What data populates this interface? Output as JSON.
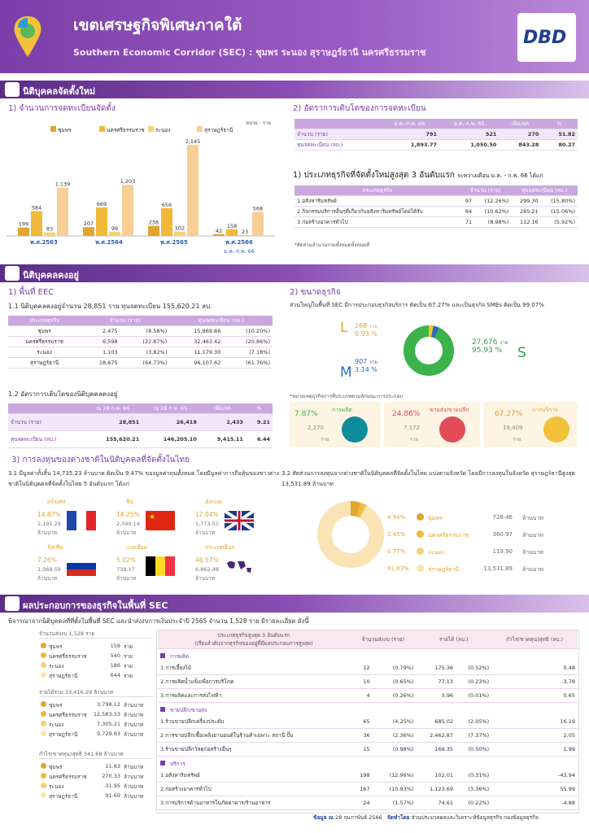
{
  "header": {
    "title": "เขตเศรษฐกิจพิเศษภาคใต้",
    "subtitle": "Southern Economic Corridor (SEC) : ชุมพร ระนอง สุราษฎร์ธานี นครศรีธรรมราช",
    "logo": "DBD"
  },
  "sec1": {
    "bar": "นิติบุคคลจัดตั้งใหม่",
    "chart_title": "1) จำนวนการจดทะเบียนจัดตั้ง",
    "unit": "หน่วย : ราย",
    "growth_title": "2) อัตราการเติบโตของการจดทะเบียน",
    "growth_headers": [
      "",
      "ม.ค.-ก.พ. 66",
      "ม.ค.-ก.พ. 65",
      "เพิ่ม/ลด",
      "%"
    ],
    "growth_rows": [
      [
        "จำนวน (ราย)",
        "791",
        "521",
        "270",
        "51.82"
      ],
      [
        "ทุนจดทะเบียน (ลบ.)",
        "1,893.77",
        "1,050.50",
        "843.28",
        "80.27"
      ]
    ],
    "top3_title": "1) ประเภทธุรกิจที่จัดตั้งใหม่สูงสุด 3 อันดับแรก",
    "top3_sub": "ระหว่างเดือน ม.ค. - ก.พ. 66 ได้แก่",
    "top3_headers": [
      "ประเภทธุรกิจ",
      "จำนวน (ราย)",
      "ทุนจดทะเบียน (ลบ.)"
    ],
    "top3_rows": [
      [
        "1.อสังหาริมทรัพย์",
        "97",
        "(12.26%)",
        "299.30",
        "(15.80%)"
      ],
      [
        "2.กิจกรรมบริการอื่นๆที่เกี่ยวกับอสังหาริมทรัพย์โดยได้รับ",
        "84",
        "(10.62%)",
        "285.21",
        "(15.06%)"
      ],
      [
        "3.ก่อสร้างอาคารทั่วไป",
        "71",
        "(8.98%)",
        "112.16",
        "(5.92%)"
      ]
    ],
    "top3_note": "*สัดส่วนจำนวนรวมทั้งหมดทั้งหมดที่"
  },
  "chart_data": {
    "type": "bar",
    "categories": [
      "พ.ศ.2563",
      "พ.ศ.2564",
      "พ.ศ.2565",
      "พ.ศ.2566"
    ],
    "cat_note": "ม.ค.-ก.พ. 66",
    "series": [
      {
        "name": "ชุมพร",
        "color": "#e0a52e",
        "values": [
          199,
          207,
          238,
          42
        ]
      },
      {
        "name": "นครศรีธรรมราช",
        "color": "#f0b93a",
        "values": [
          584,
          669,
          656,
          158
        ]
      },
      {
        "name": "ระนอง",
        "color": "#f5d27a",
        "values": [
          83,
          99,
          102,
          23
        ]
      },
      {
        "name": "สุราษฎร์ธานี",
        "color": "#f8cf95",
        "values": [
          1139,
          1203,
          2145,
          568
        ]
      }
    ],
    "value_labels": [
      [
        "199",
        "584",
        "83",
        "1,139"
      ],
      [
        "207",
        "669",
        "99",
        "1,203"
      ],
      [
        "238",
        "656",
        "102",
        "2,145"
      ],
      [
        "42",
        "158",
        "23",
        "568"
      ]
    ],
    "ylim": [
      0,
      2300
    ]
  },
  "sec2": {
    "bar": "นิติบุคคลคงอยู่",
    "eec_title": "1) พื้นที่ EEC",
    "eec_line": "1.1 นิติบุคคลคงอยู่จำนวน  28,851  ราย ทุนจดทะเบียน 155,620.21 ลบ.",
    "eec_headers": [
      "ประเภทธุรกิจ",
      "จำนวน (ราย)",
      "ทุนจดทะเบียน (ลบ.)"
    ],
    "eec_rows": [
      [
        "ชุมพร",
        "2,475",
        "(8.58%)",
        "15,869.86",
        "(10.20%)"
      ],
      [
        "นครศรีธรรมราช",
        "6,598",
        "(22.87%)",
        "32,463.42",
        "(20.86%)"
      ],
      [
        "ระนอง",
        "1,103",
        "(3.82%)",
        "11,179.30",
        "(7.18%)"
      ],
      [
        "สุราษฎร์ธานี",
        "18,675",
        "(64.73%)",
        "96,107.62",
        "(61.76%)"
      ]
    ],
    "rate_title": "1.2 อัตราการเติบโตของนิติบุคคลคงอยู่",
    "rate_headers": [
      "",
      "ณ 28 ก.พ. 66",
      "ณ 28 ก.พ. 65",
      "เพิ่ม/ลด",
      "%"
    ],
    "rate_rows": [
      [
        "จำนวน (ราย)",
        "28,851",
        "26,418",
        "2,433",
        "9.21"
      ],
      [
        "ทุนจดทะเบียน (ลบ.)",
        "155,620.21",
        "146,205.10",
        "9,415.11",
        "6.44"
      ]
    ],
    "size_title": "2) ขนาดธุรกิจ",
    "size_line": "ส่วนใหญ่ในพื้นที่ SEC มีการประกอบธุรกิจบริการ คิดเป็น  67.27% และเป็นธุรกิจ SMEs คิดเป็น 99.07%",
    "L": {
      "letter": "L",
      "num": "268",
      "unit": "ราย",
      "pct": "0.93 %"
    },
    "M": {
      "letter": "M",
      "num": "907",
      "unit": "ราย",
      "pct": "3.14 %"
    },
    "S": {
      "letter": "S",
      "num": "27,676",
      "unit": "ราย",
      "pct": "95.93 %"
    },
    "size_note": "*หมายเหตุธุรกิจการที่ประเภทตามลักษณะการประกอบ",
    "cards": [
      {
        "pct": "7.87%",
        "label": "การผลิต",
        "num": "2,270",
        "unit": "ราย"
      },
      {
        "pct": "24.86%",
        "label": "ขายส่ง/ขายปลีก",
        "num": "7,172",
        "unit": "ราย"
      },
      {
        "pct": "67.27%",
        "label": "การบริการ",
        "num": "19,409",
        "unit": "ราย"
      }
    ],
    "inv_title": "3) การลงทุนของต่างชาติในนิติบุคคลที่จัดตั้งในไทย",
    "inv_text": "3.1 มีมูลค่าทั้งสิ้น 14,735.23 ล้านบาท คิดเป็น 9.47%  ของมูลค่าทุนทั้งหมด โดยมีมูลค่าการถือหุ้นของชาวต่างชาติในนิติบุคคลที่จัดตั้งในไทย 5 อันดับแรก ได้แก่",
    "countries": [
      {
        "name": "ฝรั่งเศส",
        "pct": "14.87%",
        "val": "2,191.29",
        "unit": "ล้านบาท"
      },
      {
        "name": "จีน",
        "pct": "14.25%",
        "val": "2,099.14",
        "unit": "ล้านบาท"
      },
      {
        "name": "อังกฤษ",
        "pct": "12.04%",
        "val": "1,773.55",
        "unit": "ล้านบาท"
      },
      {
        "name": "รัสเซีย",
        "pct": "7.26%",
        "val": "1,069.59",
        "unit": "ล้านบาท"
      },
      {
        "name": "เบลเยี่ยม",
        "pct": "5.02%",
        "val": "739.17",
        "unit": "ล้านบาท"
      },
      {
        "name": "ประเทศอื่นๆ",
        "pct": "46.57%",
        "val": "6,862.48",
        "unit": "ล้านบาท"
      }
    ],
    "prov_text": "3.2 สัดส่วนการลงทุนจากต่างชาติในนิติบุคคลที่จัดตั้งในไทย แบ่งตามจังหวัด โดยมีการลงทุนในจังหวัด สุราษฎร์ธานีสูงสุด 13,531.89 ล้านบาท",
    "prov_rows": [
      {
        "pct": "4.94%",
        "name": "ชุมพร",
        "val": "728.46",
        "unit": "ล้านบาท",
        "color": "#e0a52e"
      },
      {
        "pct": "2.45%",
        "name": "นครศรีธรรมราช",
        "val": "360.97",
        "unit": "ล้านบาท",
        "color": "#f0b93a"
      },
      {
        "pct": "0.77%",
        "name": "ระนอง",
        "val": "113.90",
        "unit": "ล้านบาท",
        "color": "#f5d27a"
      },
      {
        "pct": "91.83%",
        "name": "สุราษฎร์ธานี",
        "val": "13,531.89",
        "unit": "ล้านบาท",
        "color": "#fae3b4"
      }
    ]
  },
  "sec3": {
    "bar": "ผลประกอบการของธุรกิจในพื้นที่ SEC",
    "intro": "พิจารณาจากนิติบุคคลที่ที่ตั้งในพื้นที่ SEC และนำส่งงบการเงินประจำปี 2565 จำนวน 1,528 ราย มีรายละเอียด ดังนี้",
    "groups": [
      {
        "title": "จำนวนส่งงบ 1,528 ราย",
        "rows": [
          [
            "ชุมพร",
            "158",
            "ราย"
          ],
          [
            "นครศรีธรรมราช",
            "540",
            "ราย"
          ],
          [
            "ระนอง",
            "186",
            "ราย"
          ],
          [
            "สุราษฎร์ธานี",
            "644",
            "ราย"
          ]
        ]
      },
      {
        "title": "รายได้รวม 33,416.29 ล้านบาท",
        "rows": [
          [
            "ชุมพร",
            "3,798.12",
            "ล้านบาท"
          ],
          [
            "นครศรีธรรมราช",
            "12,583.33",
            "ล้านบาท"
          ],
          [
            "ระนอง",
            "7,305.21",
            "ล้านบาท"
          ],
          [
            "สุราษฎร์ธานี",
            "9,729.63",
            "ล้านบาท"
          ]
        ]
      },
      {
        "title": "กำไร(ขาดทุน)สุทธิ 341.69 ล้านบาท",
        "rows": [
          [
            "ชุมพร",
            "11.63",
            "ล้านบาท"
          ],
          [
            "นครศรีธรรมราช",
            "270.33",
            "ล้านบาท"
          ],
          [
            "ระนอง",
            "-31.95",
            "ล้านบาท"
          ],
          [
            "สุราษฎร์ธานี",
            "91.69",
            "ล้านบาท"
          ]
        ]
      }
    ],
    "t_headers": [
      "ประเภทธุรกิจสูงสุด 3 อันดับแรก\n(เรียงลำดับจากธุรกิจของอยู่ที่มีผลประกอบการสูงสุด)",
      "จำนวนส่งงบ (ราย)",
      "รายได้ (ลบ.)",
      "กำไร(ขาดทุน)สุทธิ (ลบ.)"
    ],
    "t_groups": [
      {
        "name": "การผลิต",
        "rows": [
          [
            "1.การเลี้ยงไม้",
            "12",
            "(0.79%)",
            "175.36",
            "(0.52%)",
            "0.48"
          ],
          [
            "2.การผลิตน้ำแข็งเพื่อการบริโภค",
            "10",
            "(0.65%)",
            "77.13",
            "(0.23%)",
            "-3.78"
          ],
          [
            "3.การผลิตและการส่งไฟฟ้า",
            "4",
            "(0.26%)",
            "3.96",
            "(0.01%)",
            "0.65"
          ]
        ]
      },
      {
        "name": "ขายปลีก/ขายส่ง",
        "rows": [
          [
            "1.ร้านขายปลีกเครื่องประดับ",
            "65",
            "(4.25%)",
            "685.02",
            "(2.05%)",
            "16.19"
          ],
          [
            "2.การขายปลีกเชื้อเพลิงยานยนต์ในร้านค้าเฉพาะ สถานี ปั๊ม",
            "36",
            "(2.36%)",
            "2,462.87",
            "(7.37%)",
            "2.05"
          ],
          [
            "3.ร้านขายปลีกวัสดุก่อสร้างอื่นๆ",
            "15",
            "(0.98%)",
            "166.35",
            "(0.50%)",
            "1.99"
          ]
        ]
      },
      {
        "name": "บริการ",
        "rows": [
          [
            "1.อสังหาริมทรัพย์",
            "198",
            "(12.96%)",
            "102.01",
            "(0.31%)",
            "-43.94"
          ],
          [
            "2.ก่อสร้างอาคารทั่วไป",
            "167",
            "(10.93%)",
            "1,123.69",
            "(3.36%)",
            "55.99"
          ],
          [
            "3.การบริการด้านอาหารในภัตตาคาร/ร้านอาหาร",
            "24",
            "(1.57%)",
            "74.61",
            "(0.22%)",
            "-4.88"
          ]
        ]
      }
    ],
    "footer_date_label": "ข้อมูล ณ",
    "footer_date": "28 กุมภาพันธ์ 2566",
    "footer_by_label": "จัดทำโดย",
    "footer_by": "ส่วนประมวลผลและวิเคราะห์ข้อมูลธุรกิจ กองข้อมูลธุรกิจ"
  }
}
